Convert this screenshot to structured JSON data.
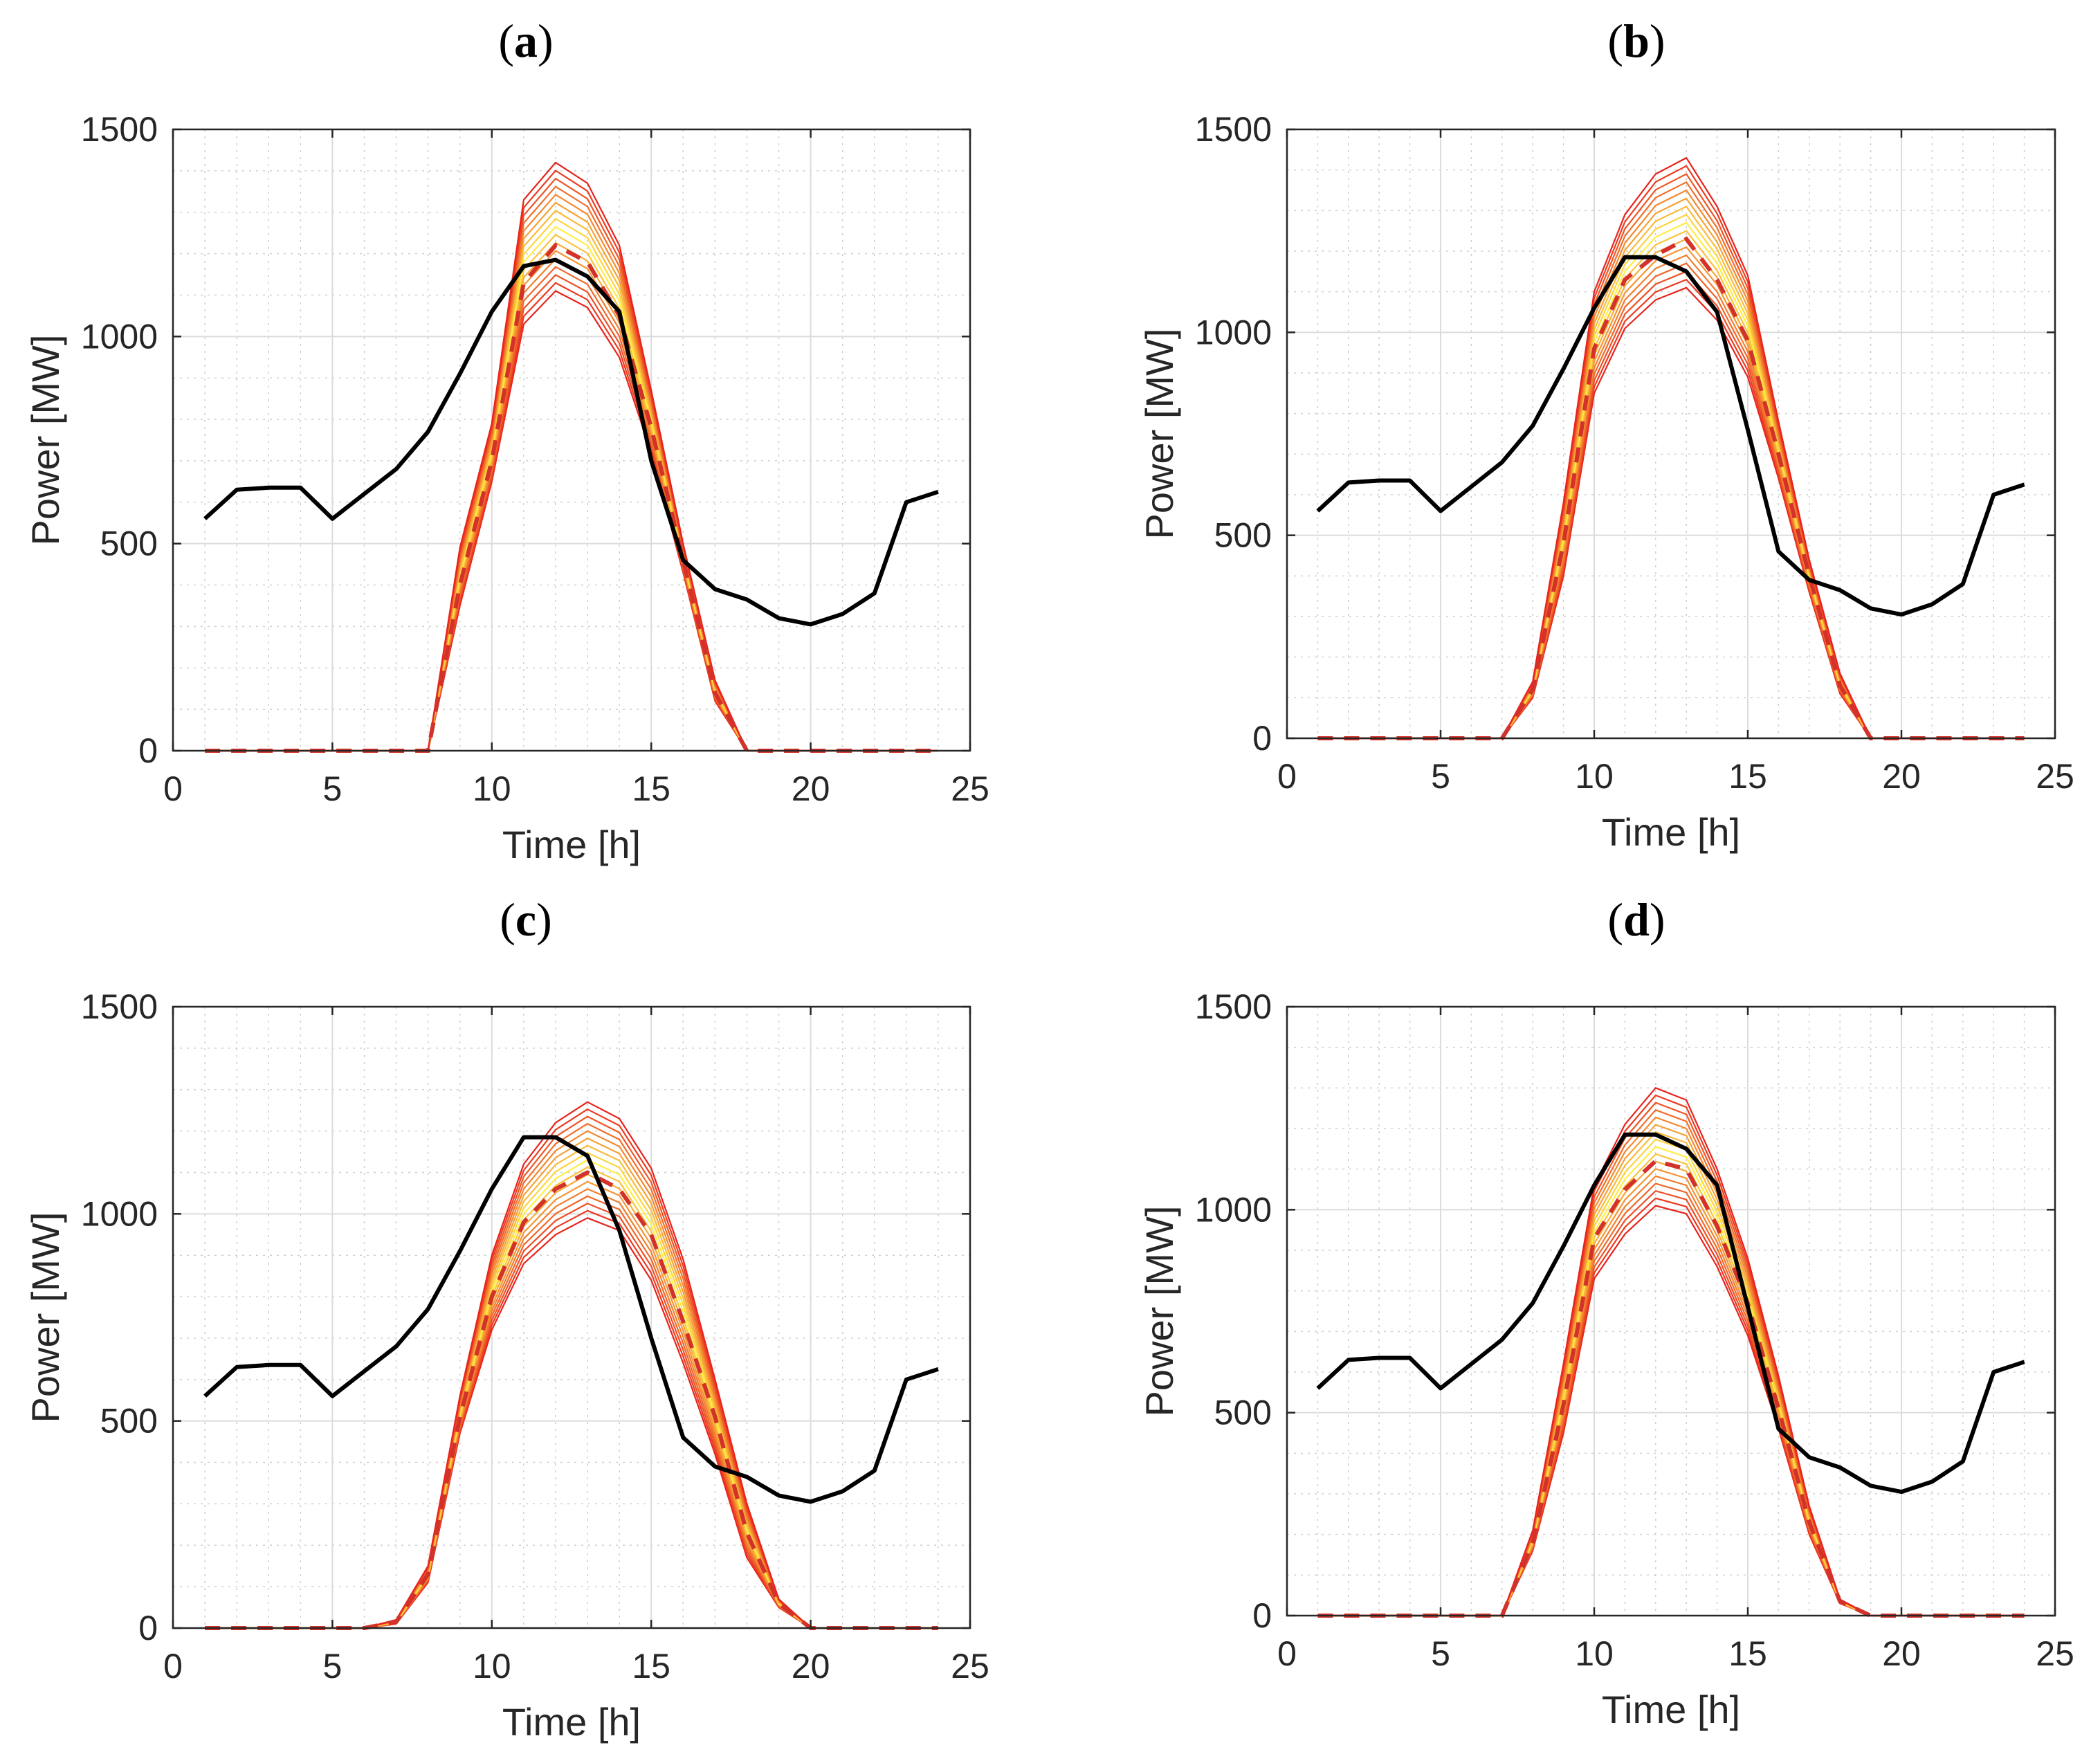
{
  "x_axis_label": "Time [h]",
  "y_axis_label": "Power [MW]",
  "colors": {
    "load": "#000000",
    "mean": "#d2322a",
    "band_low": "#ffee44",
    "band_high": "#e8231c"
  },
  "chart_data": [
    {
      "panel": "a",
      "title": "(a)",
      "type": "line",
      "xlim": [
        0,
        25
      ],
      "ylim": [
        0,
        1500
      ],
      "xticks": [
        0,
        5,
        10,
        15,
        20,
        25
      ],
      "yticks": [
        0,
        500,
        1000,
        1500
      ],
      "xlabel": "Time [h]",
      "ylabel": "Power [MW]",
      "grid": true,
      "x": [
        1,
        2,
        3,
        4,
        5,
        6,
        7,
        8,
        9,
        10,
        11,
        12,
        13,
        14,
        15,
        16,
        17,
        18,
        19,
        20,
        21,
        22,
        23,
        24
      ],
      "load": [
        560,
        630,
        635,
        635,
        560,
        620,
        680,
        770,
        910,
        1060,
        1170,
        1185,
        1145,
        1060,
        700,
        460,
        390,
        365,
        320,
        305,
        330,
        380,
        600,
        625
      ],
      "pv_min": [
        0,
        0,
        0,
        0,
        0,
        0,
        0,
        0,
        350,
        650,
        1030,
        1110,
        1070,
        950,
        720,
        430,
        120,
        0,
        0,
        0,
        0,
        0,
        0,
        0
      ],
      "pv_max": [
        0,
        0,
        0,
        0,
        0,
        0,
        0,
        0,
        490,
        790,
        1330,
        1420,
        1370,
        1220,
        870,
        500,
        170,
        0,
        0,
        0,
        0,
        0,
        0,
        0
      ],
      "pv_mean": [
        0,
        0,
        0,
        0,
        0,
        0,
        0,
        0,
        400,
        700,
        1130,
        1220,
        1180,
        1050,
        780,
        460,
        140,
        0,
        0,
        0,
        0,
        0,
        0,
        0
      ]
    },
    {
      "panel": "b",
      "title": "(b)",
      "type": "line",
      "xlim": [
        0,
        25
      ],
      "ylim": [
        0,
        1500
      ],
      "xticks": [
        0,
        5,
        10,
        15,
        20,
        25
      ],
      "yticks": [
        0,
        500,
        1000,
        1500
      ],
      "xlabel": "Time [h]",
      "ylabel": "Power [MW]",
      "grid": true,
      "x": [
        1,
        2,
        3,
        4,
        5,
        6,
        7,
        8,
        9,
        10,
        11,
        12,
        13,
        14,
        15,
        16,
        17,
        18,
        19,
        20,
        21,
        22,
        23,
        24
      ],
      "load": [
        560,
        630,
        635,
        635,
        560,
        620,
        680,
        770,
        910,
        1060,
        1185,
        1185,
        1150,
        1050,
        760,
        460,
        390,
        365,
        320,
        305,
        330,
        380,
        600,
        625
      ],
      "pv_min": [
        0,
        0,
        0,
        0,
        0,
        0,
        0,
        100,
        400,
        850,
        1010,
        1080,
        1110,
        1030,
        890,
        640,
        360,
        110,
        0,
        0,
        0,
        0,
        0,
        0
      ],
      "pv_max": [
        0,
        0,
        0,
        0,
        0,
        0,
        0,
        140,
        580,
        1100,
        1290,
        1390,
        1430,
        1310,
        1140,
        780,
        440,
        160,
        0,
        0,
        0,
        0,
        0,
        0
      ],
      "pv_mean": [
        0,
        0,
        0,
        0,
        0,
        0,
        0,
        120,
        480,
        960,
        1130,
        1190,
        1230,
        1130,
        980,
        700,
        400,
        130,
        0,
        0,
        0,
        0,
        0,
        0
      ]
    },
    {
      "panel": "c",
      "title": "(c)",
      "type": "line",
      "xlim": [
        0,
        25
      ],
      "ylim": [
        0,
        1500
      ],
      "xticks": [
        0,
        5,
        10,
        15,
        20,
        25
      ],
      "yticks": [
        0,
        500,
        1000,
        1500
      ],
      "xlabel": "Time [h]",
      "ylabel": "Power [MW]",
      "grid": true,
      "x": [
        1,
        2,
        3,
        4,
        5,
        6,
        7,
        8,
        9,
        10,
        11,
        12,
        13,
        14,
        15,
        16,
        17,
        18,
        19,
        20,
        21,
        22,
        23,
        24
      ],
      "load": [
        560,
        630,
        635,
        635,
        560,
        620,
        680,
        770,
        910,
        1060,
        1185,
        1185,
        1140,
        960,
        700,
        460,
        390,
        365,
        320,
        305,
        330,
        380,
        600,
        625
      ],
      "pv_min": [
        0,
        0,
        0,
        0,
        0,
        0,
        10,
        110,
        470,
        720,
        880,
        950,
        990,
        960,
        840,
        640,
        420,
        170,
        50,
        0,
        0,
        0,
        0,
        0
      ],
      "pv_max": [
        0,
        0,
        0,
        0,
        0,
        0,
        20,
        150,
        560,
        900,
        1120,
        1220,
        1270,
        1230,
        1110,
        890,
        600,
        300,
        70,
        0,
        0,
        0,
        0,
        0
      ],
      "pv_mean": [
        0,
        0,
        0,
        0,
        0,
        0,
        15,
        130,
        510,
        800,
        980,
        1060,
        1100,
        1060,
        950,
        740,
        510,
        230,
        60,
        0,
        0,
        0,
        0,
        0
      ]
    },
    {
      "panel": "d",
      "title": "(d)",
      "type": "line",
      "xlim": [
        0,
        25
      ],
      "ylim": [
        0,
        1500
      ],
      "xticks": [
        0,
        5,
        10,
        15,
        20,
        25
      ],
      "yticks": [
        0,
        500,
        1000,
        1500
      ],
      "xlabel": "Time [h]",
      "ylabel": "Power [MW]",
      "grid": true,
      "x": [
        1,
        2,
        3,
        4,
        5,
        6,
        7,
        8,
        9,
        10,
        11,
        12,
        13,
        14,
        15,
        16,
        17,
        18,
        19,
        20,
        21,
        22,
        23,
        24
      ],
      "load": [
        560,
        630,
        635,
        635,
        560,
        620,
        680,
        770,
        910,
        1060,
        1185,
        1185,
        1150,
        1060,
        760,
        460,
        390,
        365,
        320,
        305,
        330,
        380,
        600,
        625
      ],
      "pv_min": [
        0,
        0,
        0,
        0,
        0,
        0,
        0,
        160,
        450,
        830,
        940,
        1010,
        990,
        860,
        690,
        460,
        200,
        30,
        0,
        0,
        0,
        0,
        0,
        0
      ],
      "pv_max": [
        0,
        0,
        0,
        0,
        0,
        0,
        0,
        210,
        620,
        1060,
        1210,
        1300,
        1270,
        1100,
        880,
        590,
        270,
        40,
        0,
        0,
        0,
        0,
        0,
        0
      ],
      "pv_mean": [
        0,
        0,
        0,
        0,
        0,
        0,
        0,
        180,
        520,
        930,
        1050,
        1120,
        1100,
        960,
        770,
        510,
        230,
        35,
        0,
        0,
        0,
        0,
        0,
        0
      ]
    }
  ]
}
